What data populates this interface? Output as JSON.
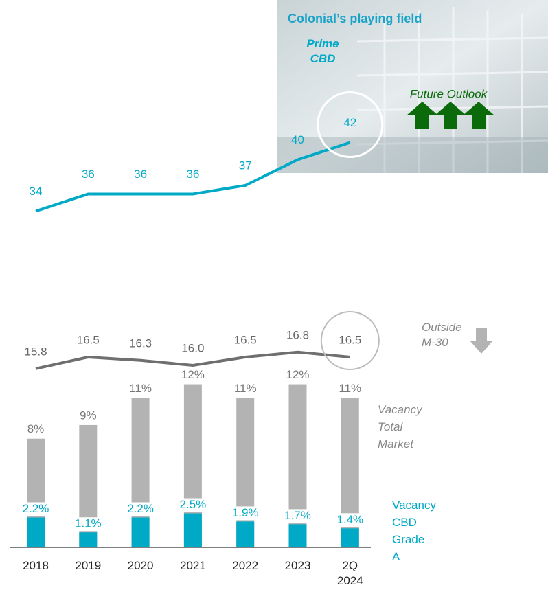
{
  "chart_data": [
    {
      "type": "line",
      "box_title": "Colonial’s playing field",
      "future_outlook": "Future Outlook",
      "series": [
        {
          "name": "Prime CBD",
          "color": "#00a9c6",
          "values": [
            34,
            36,
            36,
            36,
            37,
            40,
            42
          ]
        }
      ],
      "ylim": [
        33,
        43
      ]
    },
    {
      "type": "bar_line",
      "categories": [
        "2018",
        "2019",
        "2020",
        "2021",
        "2022",
        "2023",
        "2Q 2024"
      ],
      "series": [
        {
          "name": "Outside M-30",
          "color": "#6f6f6f",
          "axis": "y2",
          "values": [
            15.8,
            16.5,
            16.3,
            16.0,
            16.5,
            16.8,
            16.5
          ],
          "value_labels": [
            "15.8",
            "16.5",
            "16.3",
            "16.0",
            "16.5",
            "16.8",
            "16.5"
          ]
        },
        {
          "name": "Vacancy Total Market",
          "color": "#b3b3b3",
          "values": [
            8,
            9,
            11,
            12,
            11,
            12,
            11
          ],
          "value_labels": [
            "8%",
            "9%",
            "11%",
            "12%",
            "11%",
            "12%",
            "11%"
          ]
        },
        {
          "name": "Vacancy CBD Grade A",
          "color": "#00a9c6",
          "values": [
            2.2,
            1.1,
            2.2,
            2.5,
            1.9,
            1.7,
            1.4
          ],
          "value_labels": [
            "2.2%",
            "1.1%",
            "2.2%",
            "2.5%",
            "1.9%",
            "1.7%",
            "1.4%"
          ]
        }
      ],
      "ylim": [
        0,
        14
      ],
      "y2lim": [
        14,
        19
      ]
    }
  ]
}
